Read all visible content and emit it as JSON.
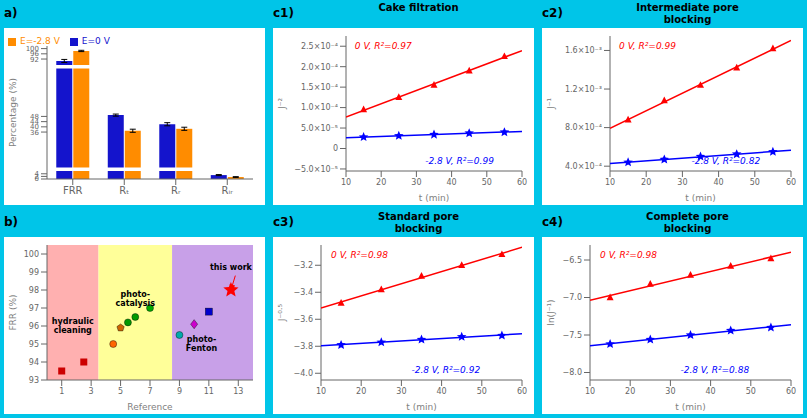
{
  "background_color": "#00C5E8",
  "chart_data": [
    {
      "type": "bar",
      "title": "a)",
      "categories": [
        "FRR",
        "Rₜ",
        "Rᵣ",
        "Rᵢᵣ"
      ],
      "ylabel": "Percentage (%)",
      "ylim": [
        0,
        102
      ],
      "yticks": [
        0,
        2,
        4,
        36,
        40,
        44,
        48,
        92,
        96,
        100
      ],
      "legend": "top",
      "series": [
        {
          "name": "E=0 V",
          "color": "#1414CC",
          "values": [
            90.5,
            49,
            42,
            3
          ],
          "errors": [
            1.2,
            0.8,
            1.2,
            0.4
          ]
        },
        {
          "name": "E=-2.8 V",
          "color": "#FF8C00",
          "values": [
            98.2,
            37,
            38.5,
            1.5
          ],
          "errors": [
            0.5,
            1.2,
            1.2,
            0.3
          ]
        }
      ],
      "break_lines": [
        7.5,
        86.0
      ]
    },
    {
      "type": "scatter",
      "title": "b)",
      "xlabel": "Reference",
      "ylabel": "FRR (%)",
      "xlim": [
        0,
        14
      ],
      "ylim": [
        93,
        100.5
      ],
      "xticks": [
        1,
        3,
        5,
        7,
        9,
        11,
        13
      ],
      "yticks": [
        93,
        94,
        95,
        96,
        97,
        98,
        99,
        100
      ],
      "regions": [
        {
          "x_range": [
            0,
            3.5
          ],
          "color": "#FFB0B0"
        },
        {
          "x_range": [
            3.5,
            8.5
          ],
          "color": "#FFFF99"
        },
        {
          "x_range": [
            8.5,
            14
          ],
          "color": "#C8A0E8"
        }
      ],
      "series": [
        {
          "type": "scatter",
          "x": [
            1.0,
            2.5
          ],
          "values": [
            93.5,
            94.0
          ],
          "color": "#CC0000",
          "marker": "square"
        },
        {
          "type": "scatter",
          "x": [
            4.5,
            5.0,
            5.5,
            6.0,
            7.0
          ],
          "values": [
            95.0,
            95.9,
            96.2,
            96.5,
            97.0
          ],
          "colors": [
            "#FF6600",
            "#CC6600",
            "#009900",
            "#009900",
            "#00AA00"
          ],
          "markers": [
            "circle",
            "pentagon",
            "circle",
            "circle",
            "circle"
          ]
        },
        {
          "type": "scatter",
          "x": [
            9.0,
            10.0,
            11.0
          ],
          "values": [
            95.5,
            96.1,
            96.8
          ],
          "colors": [
            "#00AAAA",
            "#CC00CC",
            "#0000CC"
          ],
          "markers": [
            "circle",
            "diamond",
            "square"
          ]
        },
        {
          "type": "scatter",
          "x": [
            12.5
          ],
          "values": [
            98.0
          ],
          "color": "red",
          "marker": "star"
        }
      ],
      "annotations": [
        {
          "text": "hydraulic\ncleaning",
          "x": 1.75,
          "y": 95.5
        },
        {
          "text": "photo-\ncatalysis",
          "x": 6.0,
          "y": 97.0
        },
        {
          "text": "photo-\nFenton",
          "x": 10.5,
          "y": 94.5
        },
        {
          "text": "this work",
          "x": 12.5,
          "y": 99.0
        }
      ],
      "arrows": [
        {
          "from": [
            12.8,
            98.8
          ],
          "to": [
            12.5,
            98.0
          ],
          "color": "red"
        }
      ]
    },
    {
      "type": "scatter",
      "title": "Cake filtration",
      "panel_label": "c1)",
      "xlabel": "t (min)",
      "ylabel": "J⁻²",
      "xlim": [
        10,
        60
      ],
      "xticks": [
        10,
        20,
        30,
        40,
        50,
        60
      ],
      "ylim": [
        -5.5e-05,
        0.000275
      ],
      "yticks": [
        {
          "value": -5e-05,
          "label": "−5.0×10⁻⁵"
        },
        0,
        {
          "value": 5e-05,
          "label": "5.0×10⁻⁵"
        },
        {
          "value": 0.0001,
          "label": "1.0×10⁻⁴"
        },
        {
          "value": 0.00015,
          "label": "1.5×10⁻⁴"
        },
        {
          "value": 0.0002,
          "label": "2.0×10⁻⁴"
        },
        {
          "value": 0.00025,
          "label": "2.5×10⁻⁴"
        }
      ],
      "series": [
        {
          "type": "line",
          "color": "red",
          "x": [
            10,
            60
          ],
          "values": [
            7.675e-05,
            0.00023925
          ]
        },
        {
          "type": "line",
          "color": "blue",
          "x": [
            10,
            60
          ],
          "values": [
            2.6475e-05,
            4.1725e-05
          ]
        },
        {
          "type": "scatter",
          "color": "red",
          "marker": "triangle",
          "x": [
            15,
            25,
            35,
            45,
            55
          ],
          "values": [
            9.5e-05,
            0.000125,
            0.000155,
            0.00019,
            0.000225
          ]
        },
        {
          "type": "scatter",
          "color": "blue",
          "marker": "star",
          "x": [
            15,
            25,
            35,
            45,
            55
          ],
          "values": [
            2.8e-05,
            3.1e-05,
            3.4e-05,
            3.75e-05,
            4e-05
          ]
        }
      ],
      "annotations": [
        {
          "text": "0 V, R²=0.97",
          "color": "red"
        },
        {
          "text": "-2.8 V, R²=0.99",
          "color": "blue"
        }
      ]
    },
    {
      "type": "scatter",
      "title": "Intermediate pore\nblocking",
      "panel_label": "c2)",
      "xlabel": "t (min)",
      "ylabel": "J⁻¹",
      "xlim": [
        10,
        60
      ],
      "xticks": [
        10,
        20,
        30,
        40,
        50,
        60
      ],
      "ylim": [
        0.00035,
        0.00175
      ],
      "yticks": [
        {
          "value": 0.0004,
          "label": "4.0×10⁻⁴"
        },
        {
          "value": 0.0008,
          "label": "8.0×10⁻⁴"
        },
        {
          "value": 0.0012,
          "label": "1.2×10⁻³"
        },
        {
          "value": 0.0016,
          "label": "1.6×10⁻³"
        }
      ],
      "series": [
        {
          "type": "line",
          "color": "red",
          "x": [
            10,
            60
          ],
          "values": [
            0.000793,
            0.001703
          ]
        },
        {
          "type": "line",
          "color": "blue",
          "x": [
            10,
            60
          ],
          "values": [
            0.00042825,
            0.00056575
          ]
        },
        {
          "type": "scatter",
          "color": "red",
          "marker": "triangle",
          "x": [
            15,
            25,
            35,
            45,
            55
          ],
          "values": [
            0.00088,
            0.00108,
            0.00124,
            0.00142,
            0.00162
          ]
        },
        {
          "type": "scatter",
          "color": "blue",
          "marker": "star",
          "x": [
            15,
            25,
            35,
            45,
            55
          ],
          "values": [
            0.00044,
            0.00047,
            0.0005,
            0.000525,
            0.00055
          ]
        }
      ],
      "annotations": [
        {
          "text": "0 V, R²=0.99",
          "color": "red"
        },
        {
          "text": "-2.8 V, R²=0.82",
          "color": "blue"
        }
      ]
    },
    {
      "type": "scatter",
      "title": "Standard pore\nblocking",
      "panel_label": "c3)",
      "xlabel": "t (min)",
      "ylabel": "J⁻⁰·⁵",
      "xlim": [
        10,
        60
      ],
      "xticks": [
        10,
        20,
        30,
        40,
        50,
        60
      ],
      "ylim": [
        -4.05,
        -3.05
      ],
      "yticks": [
        {
          "value": -4.0,
          "label": "−4.0"
        },
        {
          "value": -3.8,
          "label": "−3.8"
        },
        {
          "value": -3.6,
          "label": "−3.6"
        },
        {
          "value": -3.4,
          "label": "−3.4"
        },
        {
          "value": -3.2,
          "label": "−3.2"
        }
      ],
      "series": [
        {
          "type": "line",
          "color": "red",
          "x": [
            10,
            60
          ],
          "values": [
            -3.517,
            -3.067
          ]
        },
        {
          "type": "line",
          "color": "blue",
          "x": [
            10,
            60
          ],
          "values": [
            -3.797,
            -3.707
          ]
        },
        {
          "type": "scatter",
          "color": "red",
          "marker": "triangle",
          "x": [
            15,
            25,
            35,
            45,
            55
          ],
          "values": [
            -3.48,
            -3.38,
            -3.28,
            -3.2,
            -3.12
          ]
        },
        {
          "type": "scatter",
          "color": "blue",
          "marker": "star",
          "x": [
            15,
            25,
            35,
            45,
            55
          ],
          "values": [
            -3.79,
            -3.77,
            -3.75,
            -3.73,
            -3.72
          ]
        }
      ],
      "annotations": [
        {
          "text": "0 V, R²=0.98",
          "color": "red"
        },
        {
          "text": "-2.8 V, R²=0.92",
          "color": "blue"
        }
      ]
    },
    {
      "type": "scatter",
      "title": "Complete pore\nblocking",
      "panel_label": "c4)",
      "xlabel": "t (min)",
      "ylabel": "ln(J⁻¹)",
      "xlim": [
        10,
        60
      ],
      "xticks": [
        10,
        20,
        30,
        40,
        50,
        60
      ],
      "ylim": [
        -8.1,
        -6.3
      ],
      "yticks": [
        {
          "value": -8.0,
          "label": "−8.0"
        },
        {
          "value": -7.5,
          "label": "−7.5"
        },
        {
          "value": -7.0,
          "label": "−7.0"
        },
        {
          "value": -6.5,
          "label": "−6.5"
        }
      ],
      "series": [
        {
          "type": "line",
          "color": "red",
          "x": [
            10,
            60
          ],
          "values": [
            -7.036,
            -6.396
          ]
        },
        {
          "type": "line",
          "color": "blue",
          "x": [
            10,
            60
          ],
          "values": [
            -7.644,
            -7.364
          ]
        },
        {
          "type": "scatter",
          "color": "red",
          "marker": "triangle",
          "x": [
            15,
            25,
            35,
            45,
            55
          ],
          "values": [
            -7.0,
            -6.82,
            -6.7,
            -6.58,
            -6.48
          ]
        },
        {
          "type": "scatter",
          "color": "blue",
          "marker": "star",
          "x": [
            15,
            25,
            35,
            45,
            55
          ],
          "values": [
            -7.62,
            -7.56,
            -7.5,
            -7.44,
            -7.4
          ]
        }
      ],
      "annotations": [
        {
          "text": "0 V, R²=0.98",
          "color": "red"
        },
        {
          "text": "-2.8 V, R²=0.88",
          "color": "blue"
        }
      ]
    }
  ]
}
